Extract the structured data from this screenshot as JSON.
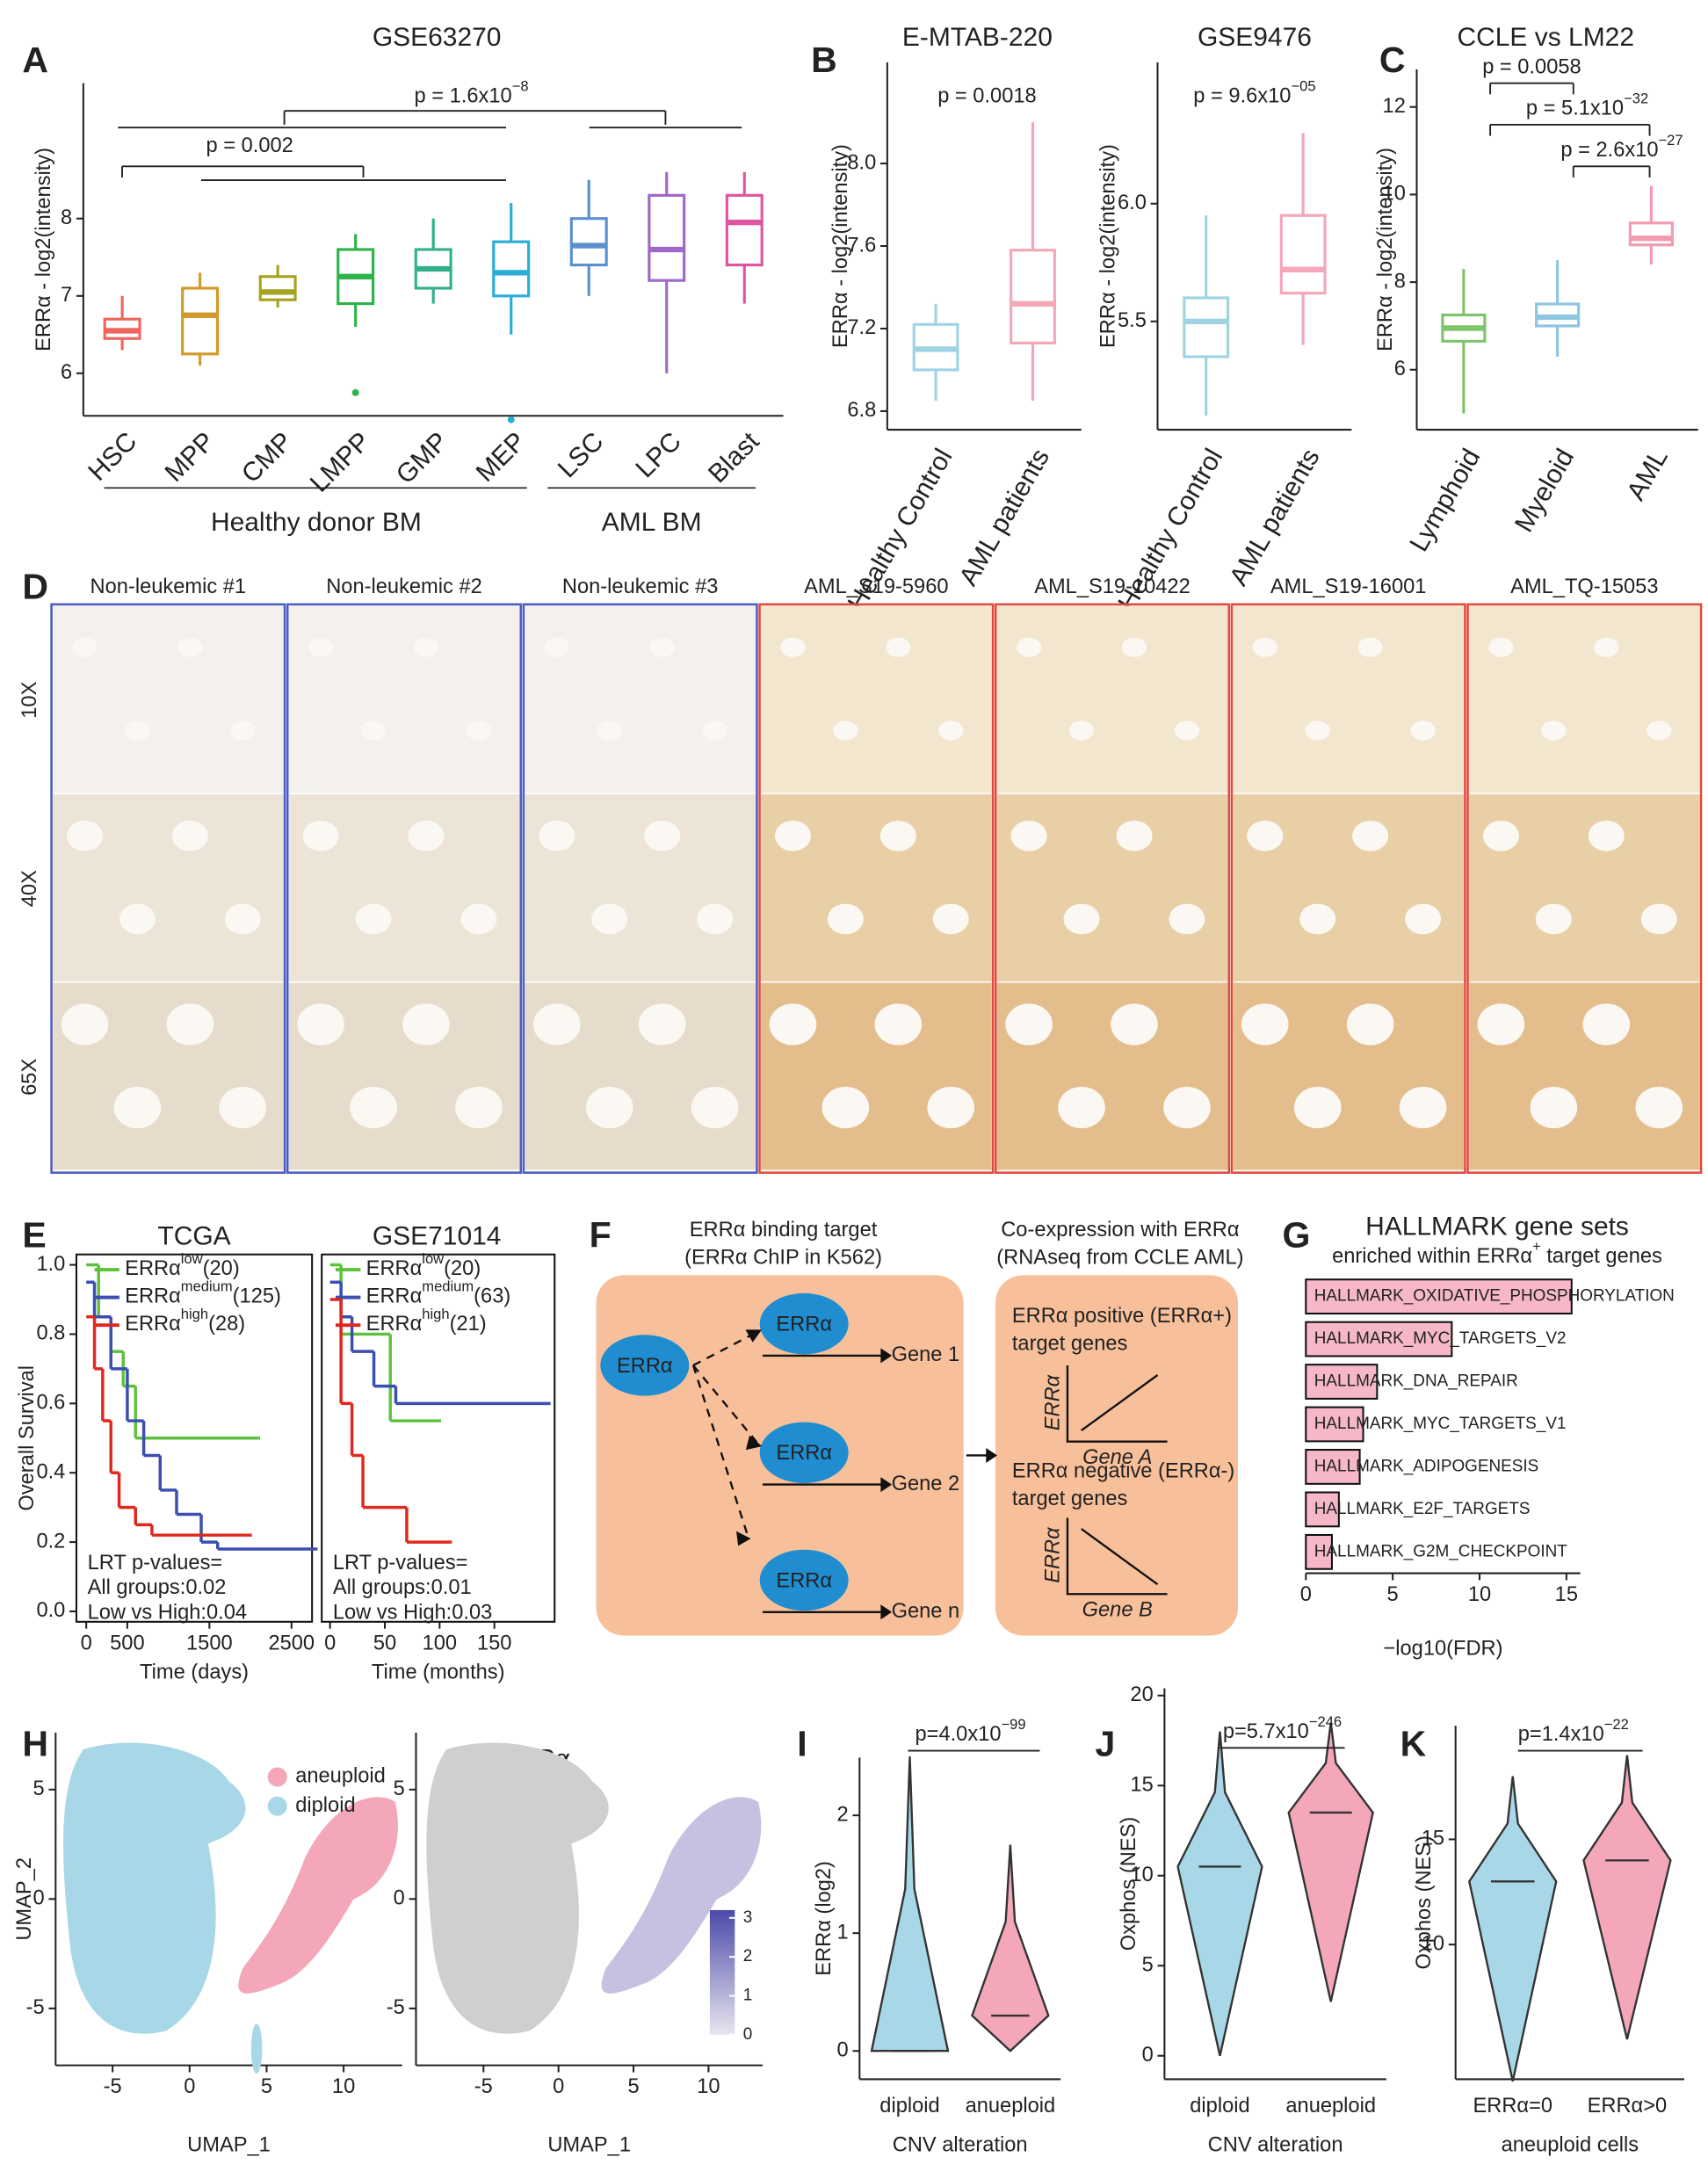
{
  "chart_data": [
    {
      "type": "box",
      "label": "A",
      "title": "GSE63270",
      "ylabel": "ERRα - log2(intensity)",
      "categories": [
        "HSC",
        "MPP",
        "CMP",
        "LMPP",
        "GMP",
        "MEP",
        "LSC",
        "LPC",
        "Blast"
      ],
      "colors": [
        "#f0665e",
        "#d29a2a",
        "#a4a422",
        "#2db34a",
        "#33b08c",
        "#2aaed6",
        "#5b90d0",
        "#a066c8",
        "#e0559f"
      ],
      "whislo": [
        6.3,
        6.1,
        6.85,
        6.6,
        6.9,
        6.5,
        7.0,
        6.0,
        6.9
      ],
      "q1": [
        6.45,
        6.25,
        6.95,
        6.9,
        7.1,
        7.0,
        7.4,
        7.2,
        7.4
      ],
      "median": [
        6.55,
        6.75,
        7.05,
        7.25,
        7.35,
        7.3,
        7.65,
        7.6,
        7.95
      ],
      "q3": [
        6.7,
        7.1,
        7.25,
        7.6,
        7.6,
        7.7,
        8.0,
        8.3,
        8.3
      ],
      "whishi": [
        7.0,
        7.3,
        7.4,
        7.8,
        8.0,
        8.2,
        8.5,
        8.6,
        8.6
      ],
      "outliers": [
        [],
        [],
        [],
        [
          5.75
        ],
        [],
        [
          5.4
        ],
        [],
        [],
        []
      ],
      "ylim": [
        5.45,
        9.75
      ],
      "yticks": [
        6,
        7,
        8
      ],
      "annotations": [
        {
          "text": "p = 0.002"
        },
        {
          "text": "p = 1.6x10",
          "sup": "−8"
        }
      ],
      "groups": [
        "Healthy donor BM",
        "AML BM"
      ]
    },
    {
      "type": "box",
      "label": "B",
      "title": "E-MTAB-220",
      "ylabel": "ERRα - log2(intensity)",
      "categories": [
        "Healthy Control",
        "AML patients"
      ],
      "colors": [
        "#9fd3e3",
        "#f4a7b9"
      ],
      "whislo": [
        6.85,
        6.85
      ],
      "q1": [
        7.0,
        7.13
      ],
      "median": [
        7.1,
        7.32
      ],
      "q3": [
        7.22,
        7.58
      ],
      "whishi": [
        7.32,
        8.2
      ],
      "outliers": [
        [],
        []
      ],
      "ylim": [
        6.71,
        8.49
      ],
      "yticks": [
        6.8,
        7.2,
        7.6,
        {
          "value": 8,
          "label": "8.0"
        }
      ],
      "annotations": [
        {
          "text": "p = 0.0018"
        }
      ]
    },
    {
      "type": "box",
      "title": "GSE9476",
      "ylabel": "ERRα - log2(intensity)",
      "categories": [
        "Healthy Control",
        "AML patients"
      ],
      "colors": [
        "#9fd3e3",
        "#f4a7b9"
      ],
      "whislo": [
        5.1,
        5.4
      ],
      "q1": [
        5.35,
        5.62
      ],
      "median": [
        5.5,
        5.72
      ],
      "q3": [
        5.6,
        5.95
      ],
      "whishi": [
        5.95,
        6.3
      ],
      "outliers": [
        [],
        []
      ],
      "ylim": [
        5.04,
        6.6
      ],
      "yticks": [
        5.5,
        {
          "value": 6,
          "label": "6.0"
        }
      ],
      "annotations": [
        {
          "text": "p = 9.6x10",
          "sup": "−05"
        }
      ]
    },
    {
      "type": "box",
      "label": "C",
      "title": "CCLE vs LM22",
      "ylabel": "ERRα - log2(intensity)",
      "categories": [
        "Lymphoid",
        "Myeloid",
        "AML"
      ],
      "colors": [
        "#7ec46a",
        "#8ec6e0",
        "#f19bb0"
      ],
      "whislo": [
        5.0,
        6.3,
        8.4
      ],
      "q1": [
        6.65,
        7.0,
        8.85
      ],
      "median": [
        6.95,
        7.2,
        9.0
      ],
      "q3": [
        7.25,
        7.5,
        9.35
      ],
      "whishi": [
        8.3,
        8.5,
        10.2
      ],
      "outliers": [
        [],
        [],
        []
      ],
      "ylim": [
        4.63,
        12.86
      ],
      "yticks": [
        6,
        8,
        10,
        12
      ],
      "annotations": [
        {
          "text": "p = 0.0058"
        },
        {
          "text": "p = 5.1x10",
          "sup": "−32"
        },
        {
          "text": "p = 2.6x10",
          "sup": "−27"
        }
      ]
    },
    {
      "type": "survival",
      "label": "E",
      "title": "TCGA",
      "xlabel": "Time (days)",
      "ylabel": "Overall Survival",
      "xlim": [
        -120,
        2750
      ],
      "ylim": [
        -0.03,
        1.03
      ],
      "xticks": [
        0,
        500,
        1500,
        2500
      ],
      "yticks": [
        {
          "value": 0,
          "label": "0.0"
        },
        0.2,
        0.4,
        0.6,
        0.8,
        {
          "value": 1,
          "label": "1.0"
        }
      ],
      "series": [
        {
          "name": "ERRα",
          "sup": "low",
          "n": "(20)",
          "color": "#5cc23c",
          "x": [
            0,
            150,
            300,
            450,
            600,
            2100
          ],
          "values": [
            1.0,
            0.85,
            0.75,
            0.65,
            0.5,
            0.5
          ]
        },
        {
          "name": "ERRα",
          "sup": "medium",
          "n": "(125)",
          "color": "#3a4fb0",
          "x": [
            0,
            100,
            300,
            500,
            700,
            900,
            1100,
            1400,
            1600,
            2800
          ],
          "values": [
            0.95,
            0.85,
            0.7,
            0.55,
            0.45,
            0.35,
            0.28,
            0.2,
            0.18,
            0.18
          ]
        },
        {
          "name": "ERRα",
          "sup": "high",
          "n": "(28)",
          "color": "#e0281e",
          "x": [
            0,
            100,
            200,
            300,
            400,
            600,
            800,
            2000
          ],
          "values": [
            0.85,
            0.7,
            0.55,
            0.4,
            0.3,
            0.25,
            0.22,
            0.22
          ]
        }
      ],
      "annotations": [
        "LRT p-values=",
        "All groups:0.02",
        "Low vs High:0.04"
      ]
    },
    {
      "type": "survival",
      "title": "GSE71014",
      "xlabel": "Time (months)",
      "xlim": [
        -7.6,
        205
      ],
      "ylim": [
        -0.03,
        1.03
      ],
      "xticks": [
        0,
        50,
        100,
        150
      ],
      "series": [
        {
          "name": "ERRα",
          "sup": "low",
          "n": "(20)",
          "color": "#5cc23c",
          "x": [
            0,
            10,
            50,
            55,
            100
          ],
          "values": [
            1.0,
            0.8,
            0.8,
            0.55,
            0.55
          ]
        },
        {
          "name": "ERRα",
          "sup": "medium",
          "n": "(63)",
          "color": "#3a4fb0",
          "x": [
            0,
            10,
            20,
            40,
            60,
            200
          ],
          "values": [
            0.95,
            0.85,
            0.75,
            0.65,
            0.6,
            0.6
          ]
        },
        {
          "name": "ERRα",
          "sup": "high",
          "n": "(21)",
          "color": "#e0281e",
          "x": [
            0,
            10,
            20,
            30,
            60,
            70,
            110
          ],
          "values": [
            0.9,
            0.6,
            0.45,
            0.3,
            0.3,
            0.2,
            0.2
          ]
        }
      ],
      "annotations": [
        "LRT p-values=",
        "All groups:0.01",
        "Low vs High:0.03"
      ]
    },
    {
      "type": "hbar",
      "label": "G",
      "title": "HALLMARK gene sets",
      "subtitle": {
        "text": "enriched within ERRα",
        "sup": "+",
        "tail": " target genes"
      },
      "xlabel": "−log10(FDR)",
      "color": "#f6b8c8",
      "categories": [
        "HALLMARK_OXIDATIVE_PHOSPHORYLATION",
        "HALLMARK_MYC_TARGETS_V2",
        "HALLMARK_DNA_REPAIR",
        "HALLMARK_MYC_TARGETS_V1",
        "HALLMARK_ADIPOGENESIS",
        "HALLMARK_E2F_TARGETS",
        "HALLMARK_G2M_CHECKPOINT"
      ],
      "values": [
        15.3,
        8.4,
        4.1,
        3.3,
        3.1,
        1.9,
        1.5
      ],
      "xlim": [
        0,
        15.8
      ],
      "xticks": [
        0,
        5,
        10,
        15
      ]
    },
    {
      "type": "scatter",
      "label": "H",
      "xlabel": "UMAP_1",
      "ylabel": "UMAP_2",
      "xlim": [
        -8.7,
        13.8
      ],
      "ylim": [
        -7.6,
        7.6
      ],
      "xticks": [
        -5,
        0,
        5,
        10
      ],
      "yticks": [
        5,
        0,
        -5
      ],
      "series": [
        {
          "name": "aneuploid",
          "color": "#f4a7b9"
        },
        {
          "name": "diploid",
          "color": "#a8d8e8"
        }
      ]
    },
    {
      "type": "scatter",
      "title": "ERRα",
      "xlabel": "UMAP_1",
      "xlim": [
        -9.5,
        13.6
      ],
      "ylim": [
        -7.6,
        7.6
      ],
      "xticks": [
        -5,
        0,
        5,
        10
      ],
      "yticks": [
        5,
        0,
        -5
      ],
      "colorbar": {
        "clim": [
          0,
          3.2
        ],
        "ticks": [
          0,
          1,
          2,
          3
        ],
        "colors": [
          "#e8e6f0",
          "#4b4aa8"
        ]
      }
    },
    {
      "type": "violin",
      "label": "I",
      "ylabel": "ERRα (log2)",
      "xlabel": "CNV alteration",
      "categories": [
        "diploid",
        "anueploid"
      ],
      "colors": [
        "#a8d8e8",
        "#f4a7b9"
      ],
      "min": [
        0,
        0
      ],
      "median": [
        0,
        0.3
      ],
      "max": [
        2.5,
        1.75
      ],
      "ylim": [
        -0.24,
        2.49
      ],
      "yticks": [
        0,
        1,
        2
      ],
      "annotations": [
        {
          "text": "p=4.0x10",
          "sup": "−99"
        }
      ]
    },
    {
      "type": "violin",
      "label": "J",
      "ylabel": "Oxphos (NES)",
      "xlabel": "CNV alteration",
      "categories": [
        "diploid",
        "anueploid"
      ],
      "colors": [
        "#a8d8e8",
        "#f4a7b9"
      ],
      "min": [
        0,
        3
      ],
      "median": [
        10.5,
        13.5
      ],
      "max": [
        18,
        18.5
      ],
      "ylim": [
        -1.3,
        20.4
      ],
      "yticks": [
        0,
        5,
        10,
        15,
        20
      ],
      "annotations": [
        {
          "text": "p=5.7x10",
          "sup": "−246"
        }
      ]
    },
    {
      "type": "violin",
      "label": "K",
      "ylabel": "Oxphos (NES)",
      "xlabel": "aneuploid cells",
      "categories": [
        "ERRα=0",
        "ERRα>0"
      ],
      "colors": [
        "#a8d8e8",
        "#f4a7b9"
      ],
      "min": [
        3.5,
        5.5
      ],
      "median": [
        13,
        14
      ],
      "max": [
        18,
        19
      ],
      "ylim": [
        3.6,
        20.4
      ],
      "yticks": [
        10,
        15
      ],
      "annotations": [
        {
          "text": "p=1.4x10",
          "sup": "−22"
        }
      ]
    }
  ],
  "histology": {
    "label": "D",
    "columns": [
      "Non-leukemic #1",
      "Non-leukemic #2",
      "Non-leukemic #3",
      "AML_S19-5960",
      "AML_S19-10422",
      "AML_S19-16001",
      "AML_TQ-15053"
    ],
    "rows": [
      "10X",
      "40X",
      "65X"
    ],
    "frame_colors": [
      "#4b5bc4",
      "#4b5bc4",
      "#4b5bc4",
      "#e04a3c",
      "#e04a3c",
      "#e04a3c",
      "#e04a3c"
    ]
  },
  "diagram": {
    "label": "F",
    "left_title": [
      "ERRα binding target",
      "(ERRα ChIP in K562)"
    ],
    "right_title": [
      "Co-expression with ERRα",
      "(RNAseq from CCLE AML)"
    ],
    "source": "ERRα",
    "targets": [
      {
        "node": "ERRα",
        "gene": "Gene 1"
      },
      {
        "node": "ERRα",
        "gene": "Gene 2"
      },
      {
        "node": "ERRα",
        "gene": "Gene n"
      }
    ],
    "positive": [
      "ERRα positive (ERRα+)",
      "target genes"
    ],
    "positive_axes": {
      "y": "ERRα",
      "x": "Gene A"
    },
    "negative": [
      "ERRα negative (ERRα-)",
      "target genes"
    ],
    "negative_axes": {
      "y": "ERRα",
      "x": "Gene B"
    }
  }
}
